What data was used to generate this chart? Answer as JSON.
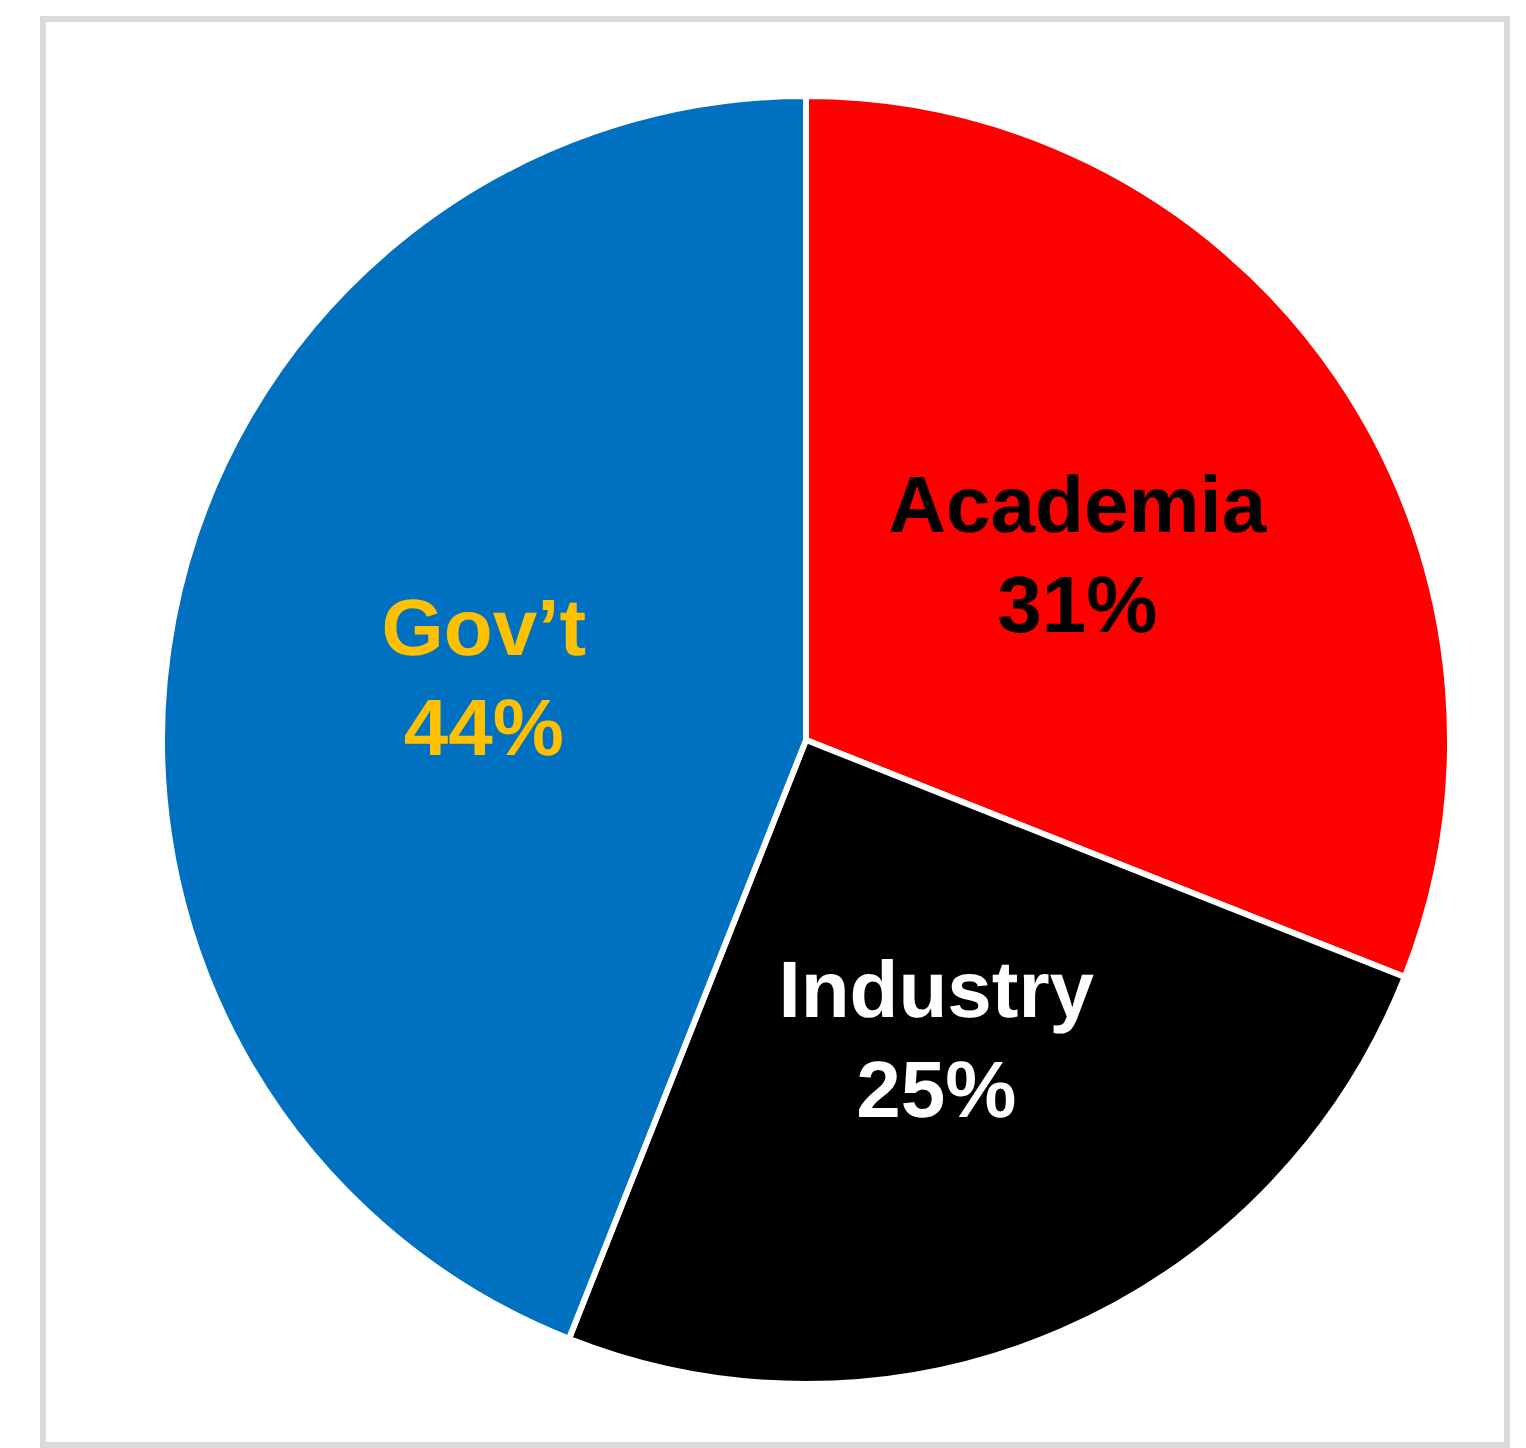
{
  "chart_data": {
    "type": "pie",
    "categories": [
      "Academia",
      "Industry",
      "Gov’t"
    ],
    "values": [
      31,
      25,
      44
    ],
    "value_labels": [
      "31%",
      "25%",
      "44%"
    ],
    "colors": [
      "#ff0000",
      "#000000",
      "#0070c0"
    ]
  }
}
